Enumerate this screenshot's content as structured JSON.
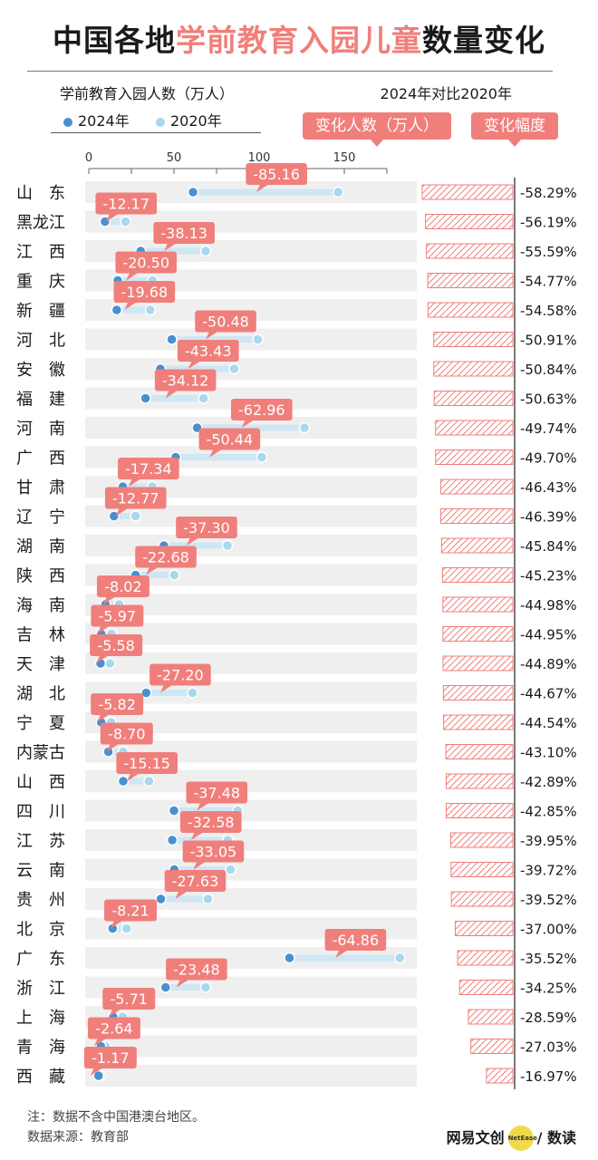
{
  "title": {
    "pre": "中国各地",
    "highlight": "学前教育入园儿童",
    "post": "数量变化"
  },
  "legend": {
    "title": "学前教育入园人数（万人）",
    "items": [
      {
        "label": "2024年",
        "color": "#4a90cf"
      },
      {
        "label": "2020年",
        "color": "#a9d8ee"
      }
    ]
  },
  "compare_title": "2024年对比2020年",
  "tags": {
    "change": "变化人数（万人）",
    "pct": "变化幅度"
  },
  "footnote": "注：数据不含中国港澳台地区。",
  "source": "数据来源：教育部",
  "brand": {
    "left": "网易文创",
    "logo": "NetEase",
    "right": "/ 数读"
  },
  "colors": {
    "accent": "#f07f7b",
    "y2024": "#4a90cf",
    "y2020": "#a9d8ee",
    "row_bg": "#efefef"
  },
  "chart_data": {
    "type": "dumbbell",
    "x_ticks": [
      0,
      50,
      100,
      150
    ],
    "xlim": [
      0,
      175
    ],
    "series": [
      {
        "name": "2024年",
        "key": "v2024"
      },
      {
        "name": "2020年",
        "key": "v2020"
      }
    ],
    "rows": [
      {
        "region": "山　东",
        "v2024": 61.2,
        "v2020": 146.4,
        "change": "-85.16",
        "pct": "-58.29%",
        "pct_value": 58.29
      },
      {
        "region": "黑龙江",
        "v2024": 9.5,
        "v2020": 21.6,
        "change": "-12.17",
        "pct": "-56.19%",
        "pct_value": 56.19
      },
      {
        "region": "江　西",
        "v2024": 30.5,
        "v2020": 68.6,
        "change": "-38.13",
        "pct": "-55.59%",
        "pct_value": 55.59
      },
      {
        "region": "重　庆",
        "v2024": 17.0,
        "v2020": 37.5,
        "change": "-20.50",
        "pct": "-54.77%",
        "pct_value": 54.77
      },
      {
        "region": "新　疆",
        "v2024": 16.4,
        "v2020": 36.1,
        "change": "-19.68",
        "pct": "-54.58%",
        "pct_value": 54.58
      },
      {
        "region": "河　北",
        "v2024": 48.7,
        "v2020": 99.2,
        "change": "-50.48",
        "pct": "-50.91%",
        "pct_value": 50.91
      },
      {
        "region": "安　徽",
        "v2024": 42.0,
        "v2020": 85.4,
        "change": "-43.43",
        "pct": "-50.84%",
        "pct_value": 50.84
      },
      {
        "region": "福　建",
        "v2024": 33.3,
        "v2020": 67.4,
        "change": "-34.12",
        "pct": "-50.63%",
        "pct_value": 50.63
      },
      {
        "region": "河　南",
        "v2024": 63.6,
        "v2020": 126.6,
        "change": "-62.96",
        "pct": "-49.74%",
        "pct_value": 49.74
      },
      {
        "region": "广　西",
        "v2024": 51.0,
        "v2020": 101.5,
        "change": "-50.44",
        "pct": "-49.70%",
        "pct_value": 49.7
      },
      {
        "region": "甘　肃",
        "v2024": 20.0,
        "v2020": 37.3,
        "change": "-17.34",
        "pct": "-46.43%",
        "pct_value": 46.43
      },
      {
        "region": "辽　宁",
        "v2024": 14.8,
        "v2020": 27.5,
        "change": "-12.77",
        "pct": "-46.39%",
        "pct_value": 46.39
      },
      {
        "region": "湖　南",
        "v2024": 44.1,
        "v2020": 81.4,
        "change": "-37.30",
        "pct": "-45.84%",
        "pct_value": 45.84
      },
      {
        "region": "陕　西",
        "v2024": 27.5,
        "v2020": 50.2,
        "change": "-22.68",
        "pct": "-45.23%",
        "pct_value": 45.23
      },
      {
        "region": "海　南",
        "v2024": 9.8,
        "v2020": 17.8,
        "change": "-8.02",
        "pct": "-44.98%",
        "pct_value": 44.98
      },
      {
        "region": "吉　林",
        "v2024": 7.3,
        "v2020": 13.3,
        "change": "-5.97",
        "pct": "-44.95%",
        "pct_value": 44.95
      },
      {
        "region": "天　津",
        "v2024": 6.9,
        "v2020": 12.4,
        "change": "-5.58",
        "pct": "-44.89%",
        "pct_value": 44.89
      },
      {
        "region": "湖　北",
        "v2024": 33.7,
        "v2020": 60.9,
        "change": "-27.20",
        "pct": "-44.67%",
        "pct_value": 44.67
      },
      {
        "region": "宁　夏",
        "v2024": 7.3,
        "v2020": 13.1,
        "change": "-5.82",
        "pct": "-44.54%",
        "pct_value": 44.54
      },
      {
        "region": "内蒙古",
        "v2024": 11.5,
        "v2020": 20.2,
        "change": "-8.70",
        "pct": "-43.10%",
        "pct_value": 43.1
      },
      {
        "region": "山　西",
        "v2024": 20.2,
        "v2020": 35.3,
        "change": "-15.15",
        "pct": "-42.89%",
        "pct_value": 42.89
      },
      {
        "region": "四　川",
        "v2024": 50.0,
        "v2020": 87.5,
        "change": "-37.48",
        "pct": "-42.85%",
        "pct_value": 42.85
      },
      {
        "region": "江　苏",
        "v2024": 49.0,
        "v2020": 81.6,
        "change": "-32.58",
        "pct": "-39.95%",
        "pct_value": 39.95
      },
      {
        "region": "云　南",
        "v2024": 50.2,
        "v2020": 83.2,
        "change": "-33.05",
        "pct": "-39.72%",
        "pct_value": 39.72
      },
      {
        "region": "贵　州",
        "v2024": 42.3,
        "v2020": 69.9,
        "change": "-27.63",
        "pct": "-39.52%",
        "pct_value": 39.52
      },
      {
        "region": "北　京",
        "v2024": 14.0,
        "v2020": 22.2,
        "change": "-8.21",
        "pct": "-37.00%",
        "pct_value": 37.0
      },
      {
        "region": "广　东",
        "v2024": 117.8,
        "v2020": 182.6,
        "change": "-64.86",
        "pct": "-35.52%",
        "pct_value": 35.52
      },
      {
        "region": "浙　江",
        "v2024": 45.1,
        "v2020": 68.6,
        "change": "-23.48",
        "pct": "-34.25%",
        "pct_value": 34.25
      },
      {
        "region": "上　海",
        "v2024": 14.3,
        "v2020": 20.0,
        "change": "-5.71",
        "pct": "-28.59%",
        "pct_value": 28.59
      },
      {
        "region": "青　海",
        "v2024": 7.1,
        "v2020": 9.8,
        "change": "-2.64",
        "pct": "-27.03%",
        "pct_value": 27.03
      },
      {
        "region": "西　藏",
        "v2024": 5.7,
        "v2020": 6.9,
        "change": "-1.17",
        "pct": "-16.97%",
        "pct_value": 16.97
      }
    ]
  }
}
